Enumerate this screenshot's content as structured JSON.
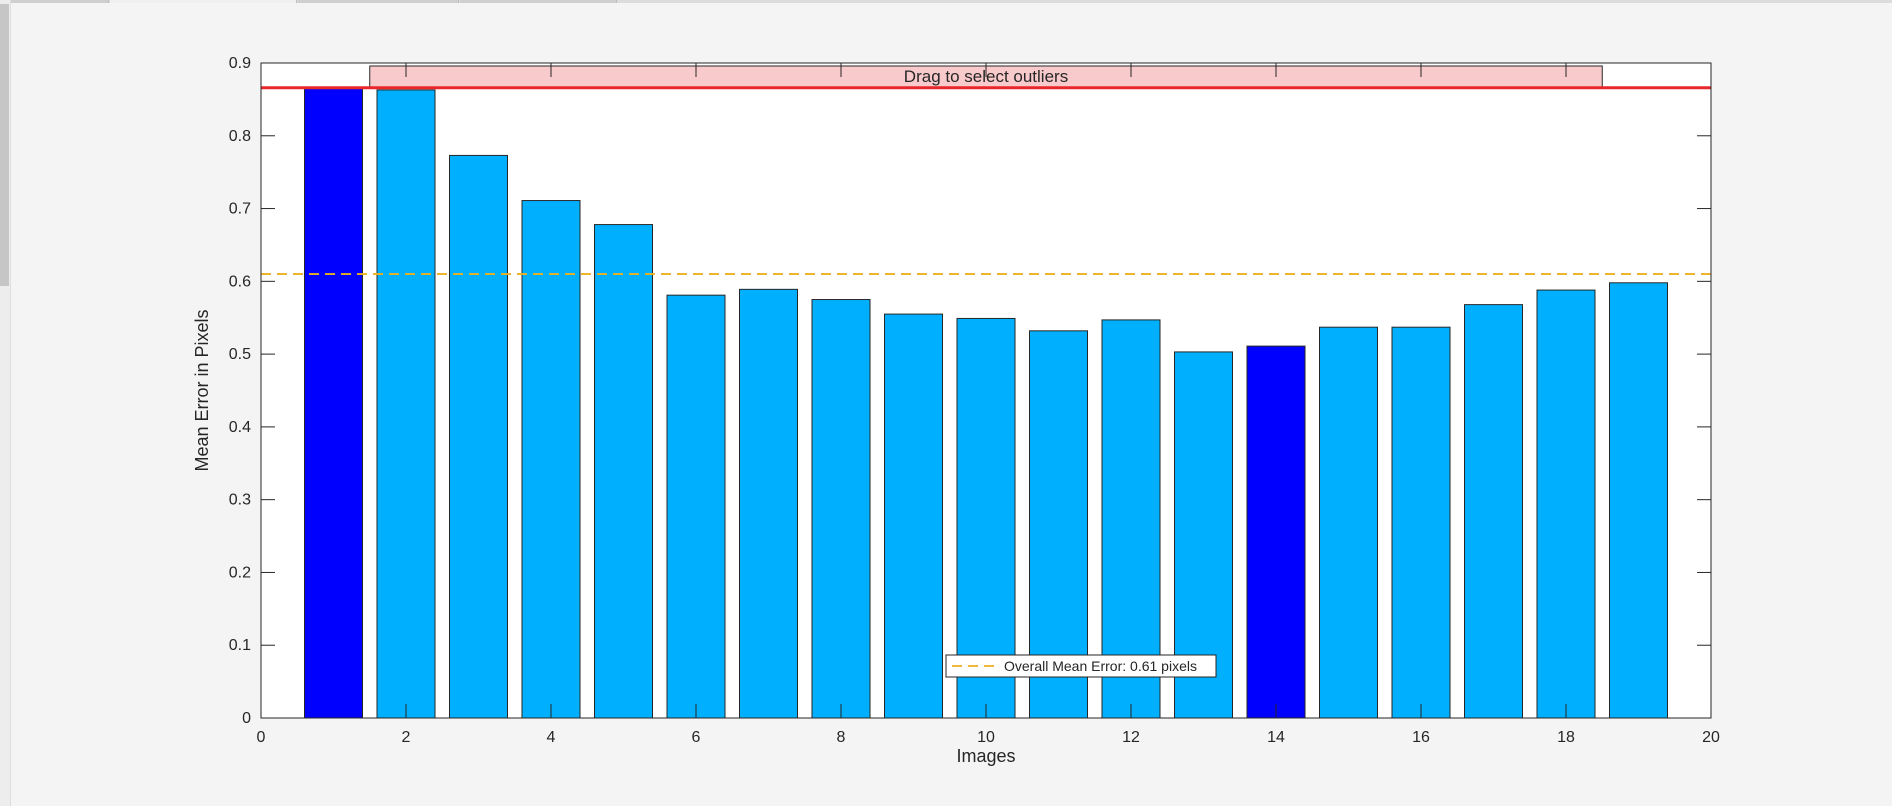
{
  "chart_data": {
    "type": "bar",
    "xlabel": "Images",
    "ylabel": "Mean Error in Pixels",
    "xlim": [
      0,
      20
    ],
    "ylim": [
      0,
      0.9
    ],
    "xticks": [
      0,
      2,
      4,
      6,
      8,
      10,
      12,
      14,
      16,
      18,
      20
    ],
    "yticks": [
      0,
      0.1,
      0.2,
      0.3,
      0.4,
      0.5,
      0.6,
      0.7,
      0.8,
      0.9
    ],
    "x": [
      1,
      2,
      3,
      4,
      5,
      6,
      7,
      8,
      9,
      10,
      11,
      12,
      13,
      14,
      15,
      16,
      17,
      18,
      19
    ],
    "values": [
      0.866,
      0.863,
      0.773,
      0.711,
      0.678,
      0.581,
      0.589,
      0.575,
      0.555,
      0.549,
      0.532,
      0.547,
      0.503,
      0.511,
      0.537,
      0.537,
      0.568,
      0.588,
      0.598
    ],
    "selected": [
      1,
      14
    ],
    "bar_color": "#00b0ff",
    "selected_color": "#0000ff",
    "mean_line": {
      "value": 0.61,
      "color": "#edb120",
      "style": "dashed"
    },
    "threshold_line": {
      "value": 0.866,
      "color": "#e8272b"
    },
    "legend": {
      "label": "Overall Mean Error: 0.61 pixels",
      "placement": "bottom-center"
    },
    "grid": false
  },
  "drag_bar": {
    "label": "Drag to select outliers",
    "color": "#f9cacb"
  }
}
